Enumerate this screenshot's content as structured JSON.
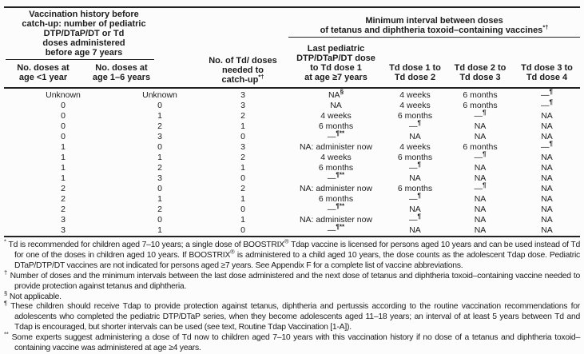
{
  "colors": {
    "text": "#1c1c1c",
    "rule": "#222222",
    "background": "#fcfcfc"
  },
  "header": {
    "left_title_lines": [
      "Vaccination history before",
      "catch-up: number of pediatric",
      "DTP/DTaP/DT or Td",
      "doses administered",
      "before age 7 years"
    ],
    "left_col1_lines": [
      "No. doses at",
      "age <1 year"
    ],
    "left_col2_lines": [
      "No. doses at",
      "age 1–6 years"
    ],
    "col3_lines": [
      "No. of Td/ doses",
      "needed to"
    ],
    "col3_last": "catch-up",
    "col3_sup": "*†",
    "right_title_line1": "Minimum interval between doses",
    "right_title_line2": "of tetanus and diphtheria toxoid–containing vaccines",
    "right_title_sup": "*†",
    "right_col1_lines": [
      "Last pediatric",
      "DTP/DTaP/DT dose",
      "to Td dose 1",
      "at age ≥7 years"
    ],
    "right_col2_lines": [
      "Td dose 1 to",
      "Td dose 2"
    ],
    "right_col3_lines": [
      "Td dose 2 to",
      "Td dose 3"
    ],
    "right_col4_lines": [
      "Td dose 3 to",
      "Td dose 4"
    ]
  },
  "table": {
    "rows": [
      [
        "Unknown",
        "Unknown",
        "3",
        {
          "t": "NA",
          "sup": "§"
        },
        "4 weeks",
        "6 months",
        {
          "t": "—",
          "sup": "¶"
        }
      ],
      [
        "0",
        "0",
        "3",
        "NA",
        "4 weeks",
        "6 months",
        {
          "t": "—",
          "sup": "¶"
        }
      ],
      [
        "0",
        "1",
        "2",
        "4 weeks",
        "6 months",
        {
          "t": "—",
          "sup": "¶"
        },
        "NA"
      ],
      [
        "0",
        "2",
        "1",
        "6 months",
        {
          "t": "—",
          "sup": "¶"
        },
        "NA",
        "NA"
      ],
      [
        "0",
        "3",
        "0",
        {
          "t": "—",
          "sup": "¶**"
        },
        "NA",
        "NA",
        "NA"
      ],
      [
        "1",
        "0",
        "3",
        "NA: administer now",
        "4 weeks",
        "6 months",
        {
          "t": "—",
          "sup": "¶"
        }
      ],
      [
        "1",
        "1",
        "2",
        "4 weeks",
        "6 months",
        {
          "t": "—",
          "sup": "¶"
        },
        "NA"
      ],
      [
        "1",
        "2",
        "1",
        "6 months",
        {
          "t": "—",
          "sup": "¶"
        },
        "NA",
        "NA"
      ],
      [
        "1",
        "3",
        "0",
        {
          "t": "—",
          "sup": "¶**"
        },
        "NA",
        "NA",
        "NA"
      ],
      [
        "2",
        "0",
        "2",
        "NA: administer now",
        "6 months",
        {
          "t": "—",
          "sup": "¶"
        },
        "NA"
      ],
      [
        "2",
        "1",
        "1",
        "6 months",
        {
          "t": "—",
          "sup": "¶"
        },
        "NA",
        "NA"
      ],
      [
        "2",
        "2",
        "0",
        {
          "t": "—",
          "sup": "¶**"
        },
        "NA",
        "NA",
        "NA"
      ],
      [
        "3",
        "0",
        "1",
        "NA: administer now",
        {
          "t": "—",
          "sup": "¶"
        },
        "NA",
        "NA"
      ],
      [
        "3",
        "1",
        "0",
        {
          "t": "—",
          "sup": "¶**"
        },
        "NA",
        "NA",
        "NA"
      ]
    ]
  },
  "footnotes": [
    {
      "marker": "*",
      "text": "Td is recommended for children aged 7–10 years; a single dose of BOOSTRIX® Tdap vaccine is licensed for persons aged 10 years and can be used instead of Td for one of the doses in children aged 10 years. If BOOSTRIX® is administered to a child aged 10 years, the dose counts as the adolescent Tdap dose. Pediatric DTaP/DTP/DT vaccines are not indicated for persons aged ≥7 years. See Appendix F for a complete list of vaccine abbreviations."
    },
    {
      "marker": "†",
      "text": "Number of doses and the minimum intervals between the last dose administered and the next dose of tetanus and diphtheria toxoid–containing vaccine needed to provide protection against tetanus and diphtheria."
    },
    {
      "marker": "§",
      "text": "Not applicable."
    },
    {
      "marker": "¶",
      "text": "These children should receive Tdap to provide protection against tetanus, diphtheria and pertussis according to the routine vaccination recommendations for adolescents who completed the pediatric DTP/DTaP series, when they become adolescents aged 11–18 years; an interval of at least 5 years between Td and Tdap is encouraged, but shorter intervals can be used (see text, Routine Tdap Vaccination [1-A])."
    },
    {
      "marker": "**",
      "text": "Some experts suggest administering a dose of Td now to children aged 7–10 years with this vaccination history if no dose of a tetanus and diphtheria toxoid–containing vaccine was administered at age ≥4 years."
    }
  ]
}
